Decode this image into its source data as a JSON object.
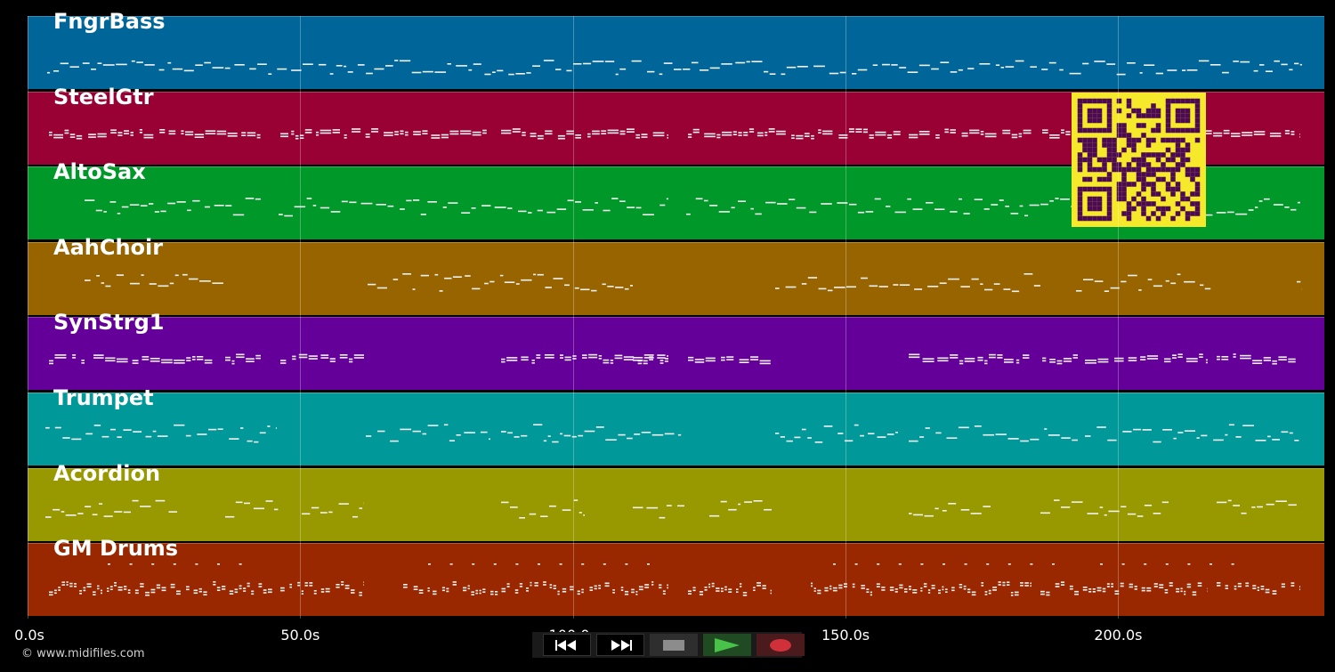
{
  "tracks": [
    {
      "name": "FngrBass",
      "color": "#00669a",
      "pattern": "bass"
    },
    {
      "name": "SteelGtr",
      "color": "#990033",
      "pattern": "chords"
    },
    {
      "name": "AltoSax",
      "color": "#009828",
      "pattern": "melody"
    },
    {
      "name": "AahChoir",
      "color": "#986400",
      "pattern": "melody-sparse"
    },
    {
      "name": "SynStrg1",
      "color": "#640099",
      "pattern": "pads"
    },
    {
      "name": "Trumpet",
      "color": "#009898",
      "pattern": "brass"
    },
    {
      "name": "Acordion",
      "color": "#989800",
      "pattern": "fills"
    },
    {
      "name": "GM Drums",
      "color": "#992800",
      "pattern": "drums"
    }
  ],
  "timeline": {
    "ticks": [
      "0.0s",
      "50.0s",
      "100.0s",
      "150.0s",
      "200.0s"
    ],
    "tick_seconds": [
      0,
      50,
      100,
      150,
      200
    ],
    "total_seconds": 237.8
  },
  "copyright": "© www.midifiles.com",
  "transport": {
    "rewind": {
      "icon": "rewind-icon"
    },
    "fast_forward": {
      "icon": "fast-forward-icon"
    },
    "stop": {
      "icon": "stop-icon"
    },
    "play": {
      "icon": "play-icon",
      "color": "#49c24a"
    },
    "record": {
      "icon": "record-icon",
      "color": "#d0303a"
    }
  },
  "qr_code": {
    "colors": {
      "foreground": "#4b0a52",
      "background": "#f6e82a"
    }
  }
}
